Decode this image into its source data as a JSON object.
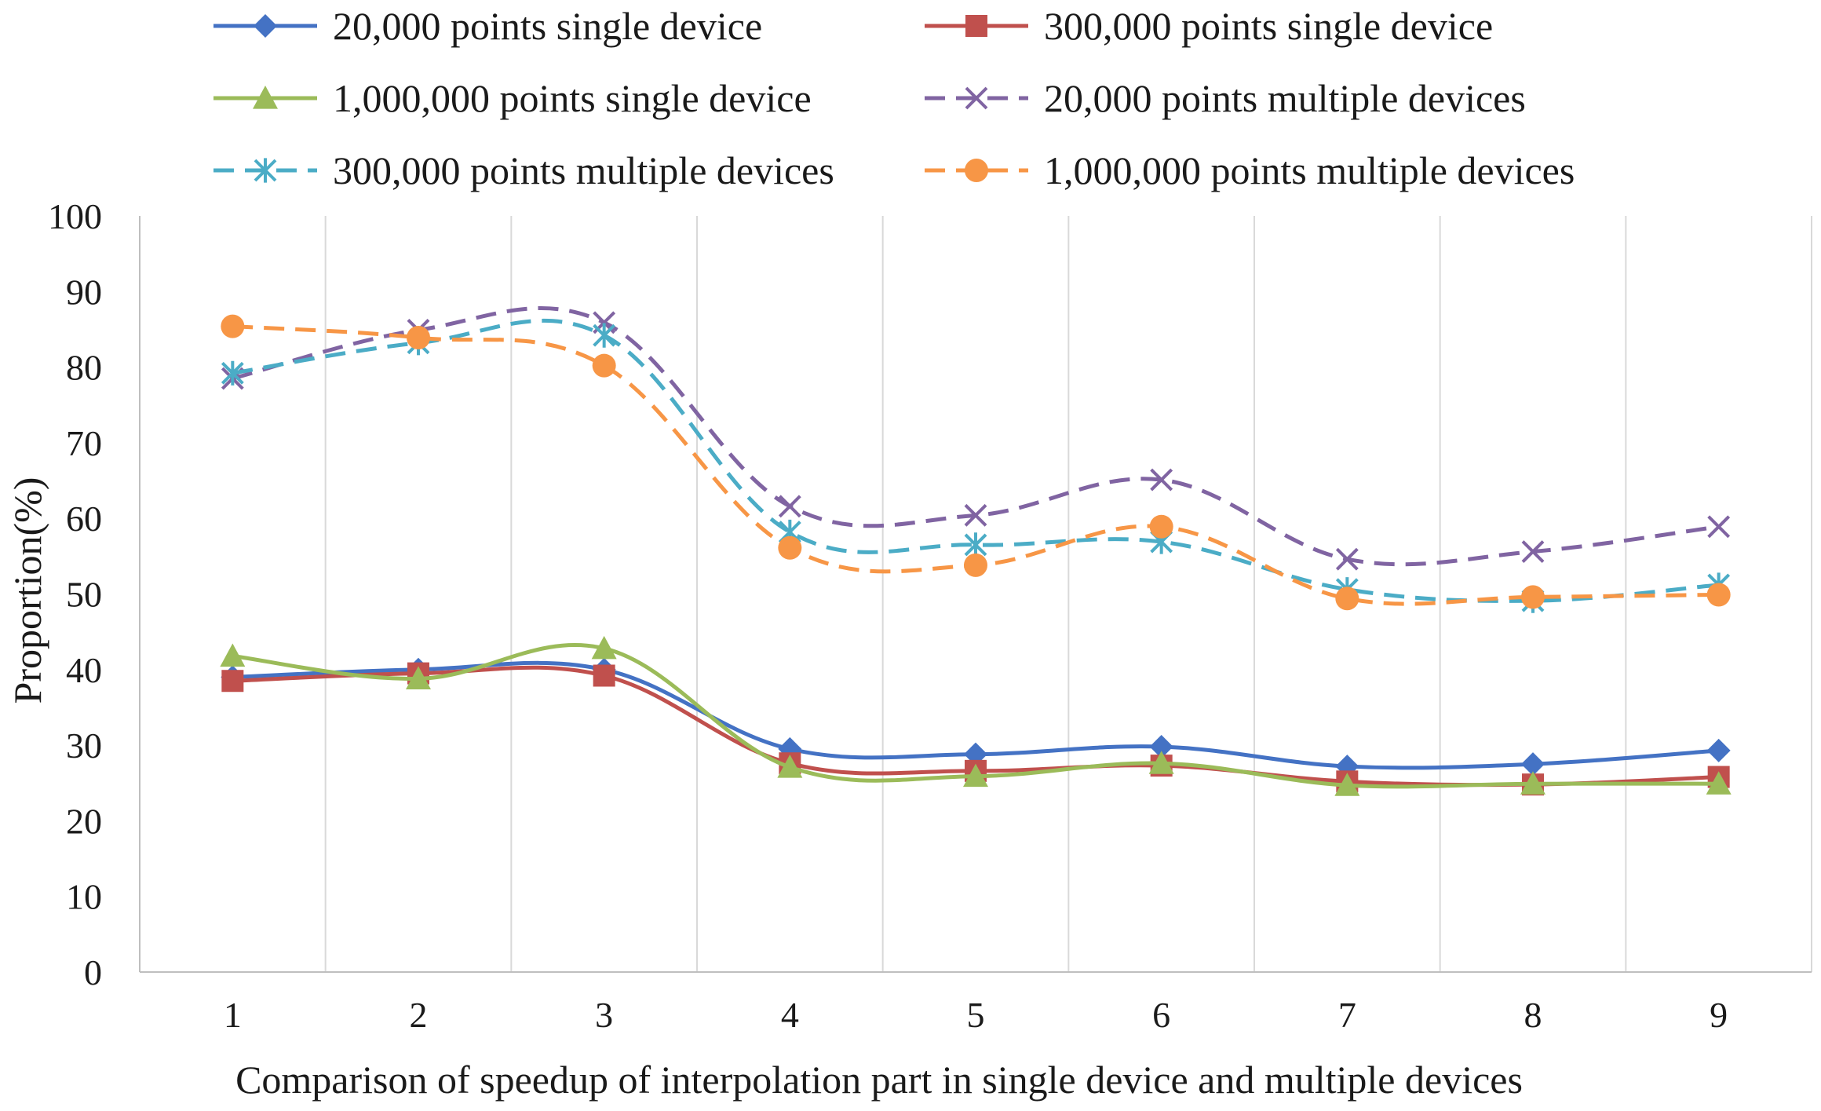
{
  "chart_data": {
    "type": "line",
    "title": "",
    "xlabel": "Comparison of speedup of interpolation part in single device and multiple devices",
    "ylabel": "Proportion(%)",
    "categories": [
      "1",
      "2",
      "3",
      "4",
      "5",
      "6",
      "7",
      "8",
      "9"
    ],
    "ylim": [
      0,
      100
    ],
    "yticks": [
      0,
      10,
      20,
      30,
      40,
      50,
      60,
      70,
      80,
      90,
      100
    ],
    "grid": "vertical gridlines between categories",
    "legend_position": "top",
    "series": [
      {
        "name": "20,000 points single device",
        "color": "#4472C4",
        "marker": "diamond",
        "dash": "solid",
        "values": [
          39,
          40,
          40,
          29.5,
          28.8,
          29.8,
          27.2,
          27.5,
          29.3
        ]
      },
      {
        "name": "300,000 points single device",
        "color": "#C0504D",
        "marker": "square",
        "dash": "solid",
        "values": [
          38.5,
          39.5,
          39.2,
          27.6,
          26.6,
          27.3,
          25.2,
          24.8,
          25.8
        ]
      },
      {
        "name": "1,000,000 points single device",
        "color": "#9BBB59",
        "marker": "triangle",
        "dash": "solid",
        "values": [
          41.8,
          38.8,
          42.8,
          27.1,
          25.9,
          27.6,
          24.7,
          24.9,
          24.9
        ]
      },
      {
        "name": "20,000 points multiple devices",
        "color": "#8064A2",
        "marker": "x",
        "dash": "dashed",
        "values": [
          78.5,
          84.9,
          85.9,
          61.6,
          60.4,
          65.1,
          54.6,
          55.6,
          58.9
        ]
      },
      {
        "name": "300,000 points multiple devices",
        "color": "#4BACC6",
        "marker": "star",
        "dash": "dashed",
        "values": [
          79.2,
          83.2,
          84.2,
          58.2,
          56.5,
          56.9,
          50.6,
          49.1,
          51.2
        ]
      },
      {
        "name": "1,000,000 points multiple devices",
        "color": "#F79646",
        "marker": "circle",
        "dash": "dashed",
        "values": [
          85.4,
          83.9,
          80.2,
          56.1,
          53.8,
          58.9,
          49.4,
          49.6,
          49.9
        ]
      }
    ]
  }
}
